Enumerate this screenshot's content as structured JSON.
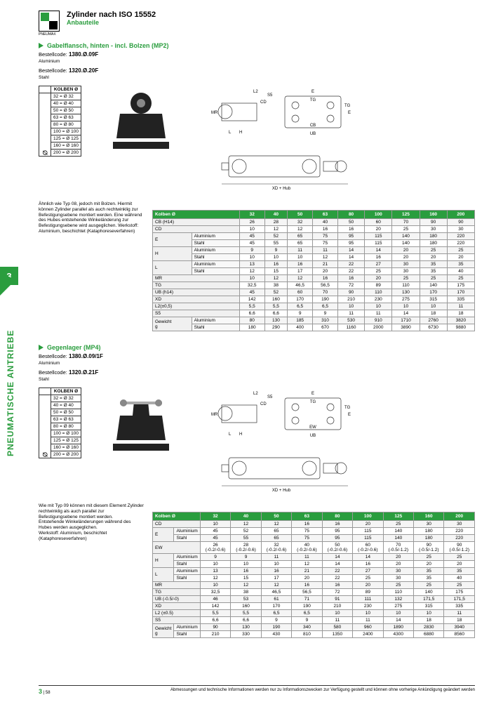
{
  "header": {
    "title": "Zylinder nach ISO 15552",
    "subtitle": "Anbauteile",
    "logo": "PNEUMAX"
  },
  "sideTab": "3",
  "sideLabel": "PNEUMATISCHE ANTRIEBE",
  "section1": {
    "title": "Gabelflansch, hinten - incl. Bolzen (MP2)",
    "code1label": "Bestellcode:",
    "code1": "1380.Ø.09F",
    "mat1": "Aluminium",
    "code2label": "Bestellcode:",
    "code2": "1320.Ø.20F",
    "mat2": "Stahl"
  },
  "section2": {
    "title": "Gegenlager (MP4)",
    "code1label": "Bestellcode:",
    "code1": "1380.Ø.09/1F",
    "mat1": "Aluminium",
    "code2label": "Bestellcode:",
    "code2": "1320.Ø.21F",
    "mat2": "Stahl"
  },
  "kolben": {
    "header": "KOLBEN Ø",
    "rows": [
      "32 = Ø 32",
      "40 = Ø 40",
      "50 = Ø 50",
      "63 = Ø 63",
      "80 = Ø 80",
      "100 = Ø 100",
      "125 = Ø 125",
      "160 = Ø 160",
      "200 = Ø 200"
    ],
    "diam": "Ø"
  },
  "desc1": "Ähnlich wie Typ 08, jedoch mit Bolzen. Hiermit können Zylinder parallel als auch rechtwinklig zur Befestigungsebene montiert werden. Eine während des Hubes entstehende Winkeländerung zur Befestigungsebene wird ausgeglichen. Werkstoff: Aluminium, beschichtet (Kataphoreseverfahren)",
  "desc2": "Wie mit Typ 09 können mit diesem Element Zylinder rechtwinklig als auch parallel zur Befestigungsebene montiert werden.\nEntstehende Winkeländerungen während des Hubes werden ausgeglichen.\nWerkstoff: Aluminium, beschichtet (Kataphoreseverfahren)",
  "columns": [
    "Kolben Ø",
    "32",
    "40",
    "50",
    "63",
    "80",
    "100",
    "125",
    "160",
    "200"
  ],
  "table1": [
    {
      "l": "CB (H14)",
      "v": [
        "26",
        "28",
        "32",
        "40",
        "50",
        "60",
        "70",
        "90",
        "90"
      ]
    },
    {
      "l": "CD",
      "v": [
        "10",
        "12",
        "12",
        "16",
        "16",
        "20",
        "25",
        "30",
        "30"
      ]
    },
    {
      "l": "E",
      "s": "Aluminium",
      "v": [
        "45",
        "52",
        "65",
        "75",
        "95",
        "115",
        "140",
        "180",
        "220"
      ]
    },
    {
      "l": "",
      "s": "Stahl",
      "v": [
        "45",
        "55",
        "65",
        "75",
        "95",
        "115",
        "140",
        "180",
        "220"
      ]
    },
    {
      "l": "H",
      "s": "Aluminium",
      "v": [
        "9",
        "9",
        "11",
        "11",
        "14",
        "14",
        "20",
        "25",
        "25"
      ]
    },
    {
      "l": "",
      "s": "Stahl",
      "v": [
        "10",
        "10",
        "10",
        "12",
        "14",
        "16",
        "20",
        "20",
        "20"
      ]
    },
    {
      "l": "L",
      "s": "Aluminium",
      "v": [
        "13",
        "16",
        "16",
        "21",
        "22",
        "27",
        "30",
        "35",
        "35"
      ]
    },
    {
      "l": "",
      "s": "Stahl",
      "v": [
        "12",
        "15",
        "17",
        "20",
        "22",
        "25",
        "30",
        "35",
        "40"
      ]
    },
    {
      "l": "MR",
      "v": [
        "10",
        "12",
        "12",
        "16",
        "16",
        "20",
        "25",
        "25",
        "25"
      ]
    },
    {
      "l": "TG",
      "v": [
        "32,5",
        "38",
        "46,5",
        "56,5",
        "72",
        "89",
        "110",
        "140",
        "175"
      ]
    },
    {
      "l": "UB (h14)",
      "v": [
        "45",
        "52",
        "60",
        "70",
        "90",
        "110",
        "130",
        "170",
        "170"
      ]
    },
    {
      "l": "XD",
      "v": [
        "142",
        "160",
        "170",
        "190",
        "210",
        "230",
        "275",
        "315",
        "335"
      ]
    },
    {
      "l": "L2(±0,5)",
      "v": [
        "5,5",
        "5,5",
        "6,5",
        "6,5",
        "10",
        "10",
        "10",
        "10",
        "11"
      ]
    },
    {
      "l": "S5",
      "v": [
        "6,6",
        "6,6",
        "9",
        "9",
        "11",
        "11",
        "14",
        "18",
        "18"
      ]
    },
    {
      "l": "Gewicht",
      "s": "Aluminium",
      "v": [
        "80",
        "130",
        "185",
        "310",
        "530",
        "910",
        "1710",
        "2760",
        "3820"
      ]
    },
    {
      "l": "g",
      "s": "Stahl",
      "v": [
        "180",
        "290",
        "400",
        "670",
        "1160",
        "2000",
        "3890",
        "6730",
        "9880"
      ]
    }
  ],
  "table2": [
    {
      "l": "CD",
      "v": [
        "10",
        "12",
        "12",
        "16",
        "16",
        "20",
        "25",
        "30",
        "30"
      ]
    },
    {
      "l": "E",
      "s": "Aluminium",
      "v": [
        "45",
        "52",
        "65",
        "75",
        "95",
        "115",
        "140",
        "180",
        "220"
      ]
    },
    {
      "l": "",
      "s": "Stahl",
      "v": [
        "45",
        "55",
        "65",
        "75",
        "95",
        "115",
        "140",
        "180",
        "220"
      ]
    },
    {
      "l": "EW",
      "v": [
        "26 (-0.2/-0.6)",
        "28 (-0.2/-0.6)",
        "32 (-0.2/-0.6)",
        "40 (-0.2/-0.6)",
        "50 (-0.2/-0.6)",
        "60 (-0.2/-0.6)",
        "70 (-0.5/-1.2)",
        "90 (-0.5/-1.2)",
        "90 (-0.5/-1.2)"
      ]
    },
    {
      "l": "H",
      "s": "Aluminium",
      "v": [
        "9",
        "9",
        "11",
        "11",
        "14",
        "14",
        "20",
        "25",
        "25"
      ]
    },
    {
      "l": "",
      "s": "Stahl",
      "v": [
        "10",
        "10",
        "10",
        "12",
        "14",
        "16",
        "20",
        "20",
        "20"
      ]
    },
    {
      "l": "L",
      "s": "Aluminium",
      "v": [
        "13",
        "16",
        "16",
        "21",
        "22",
        "27",
        "30",
        "35",
        "35"
      ]
    },
    {
      "l": "",
      "s": "Stahl",
      "v": [
        "12",
        "15",
        "17",
        "20",
        "22",
        "25",
        "30",
        "35",
        "40"
      ]
    },
    {
      "l": "MR",
      "v": [
        "10",
        "12",
        "12",
        "16",
        "16",
        "20",
        "25",
        "25",
        "25"
      ]
    },
    {
      "l": "TG",
      "v": [
        "32,5",
        "38",
        "46,5",
        "56,5",
        "72",
        "89",
        "110",
        "140",
        "175"
      ]
    },
    {
      "l": "UB (-0.5/-0)",
      "v": [
        "46",
        "53",
        "61",
        "71",
        "91",
        "111",
        "132",
        "171,5",
        "171,5"
      ]
    },
    {
      "l": "XD",
      "v": [
        "142",
        "160",
        "170",
        "190",
        "210",
        "230",
        "275",
        "315",
        "335"
      ]
    },
    {
      "l": "L2 (±0.5)",
      "v": [
        "5,5",
        "5,5",
        "6,5",
        "6,5",
        "10",
        "10",
        "10",
        "10",
        "11"
      ]
    },
    {
      "l": "S5",
      "v": [
        "6,6",
        "6,6",
        "9",
        "9",
        "11",
        "11",
        "14",
        "18",
        "18"
      ]
    },
    {
      "l": "Gewicht",
      "s": "Aluminium",
      "v": [
        "90",
        "130",
        "190",
        "340",
        "580",
        "960",
        "1890",
        "2830",
        "3940"
      ]
    },
    {
      "l": "g",
      "s": "Stahl",
      "v": [
        "210",
        "330",
        "430",
        "810",
        "1350",
        "2400",
        "4300",
        "6880",
        "8560"
      ]
    }
  ],
  "footer": {
    "chapter": "3",
    "page": "58",
    "note": "Abmessungen und technische Informationen werden nur zu Informationszwecken zur Verfügung gestellt und können ohne vorherige Ankündigung geändert werden"
  },
  "drawingLabels": {
    "xdhub": "XD + Hub",
    "dims": [
      "L2",
      "E",
      "TG",
      "CD",
      "S5",
      "MR",
      "L",
      "H",
      "CB",
      "UB",
      "EW"
    ]
  },
  "colors": {
    "accent": "#2a9d3e",
    "border": "#333",
    "tableHeader": "#2a9d3e"
  }
}
